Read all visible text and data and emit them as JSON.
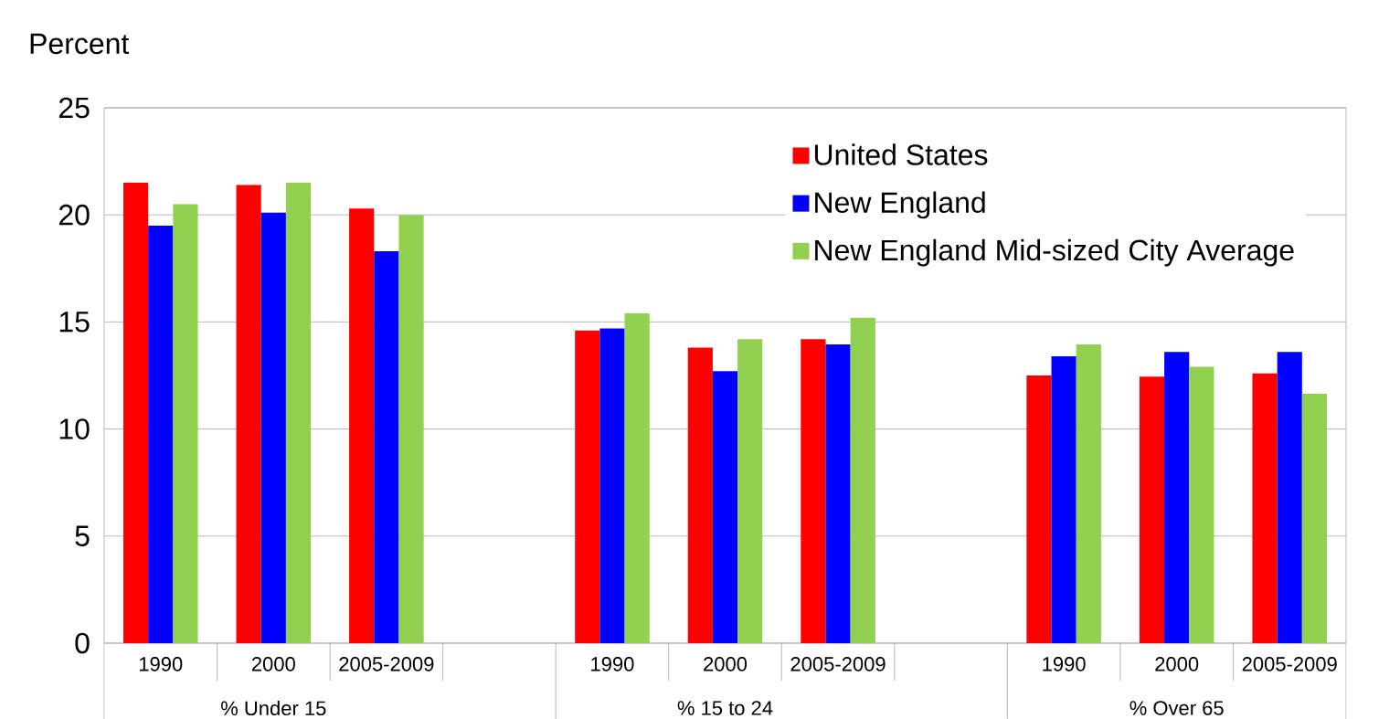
{
  "chart_data": {
    "type": "bar",
    "ylabel": "Percent",
    "categories": [
      "1990",
      "2000",
      "2005-2009",
      null,
      "1990",
      "2000",
      "2005-2009",
      null,
      "1990",
      "2000",
      "2005-2009"
    ],
    "series": [
      {
        "name": "United States",
        "color": "#ff0000",
        "values": [
          21.5,
          21.4,
          20.3,
          null,
          14.6,
          13.8,
          14.2,
          null,
          12.5,
          12.45,
          12.6
        ]
      },
      {
        "name": "New England",
        "color": "#0000ff",
        "values": [
          19.5,
          20.1,
          18.3,
          null,
          14.7,
          12.7,
          13.95,
          null,
          13.4,
          13.6,
          13.6
        ]
      },
      {
        "name": "New England Mid-sized City Average",
        "color": "#92d050",
        "values": [
          20.5,
          21.5,
          20.0,
          null,
          15.4,
          14.2,
          15.2,
          null,
          13.95,
          12.9,
          11.65
        ]
      }
    ],
    "annotations": [
      "% Under 15",
      "% 15 to 24",
      "% Over 65"
    ],
    "ylim": [
      0,
      25
    ],
    "yticks": [
      0,
      5,
      10,
      15,
      20,
      25
    ],
    "grid": "y",
    "legend": "top right"
  }
}
